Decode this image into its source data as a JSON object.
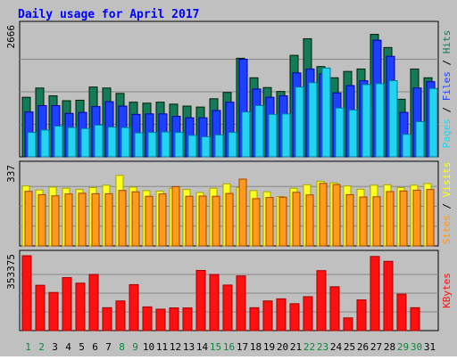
{
  "chart_data": {
    "type": "bar",
    "title": "Daily usage for April 2017",
    "days": [
      "1",
      "2",
      "3",
      "4",
      "5",
      "6",
      "7",
      "8",
      "9",
      "10",
      "11",
      "12",
      "13",
      "14",
      "15",
      "16",
      "17",
      "18",
      "19",
      "20",
      "21",
      "22",
      "23",
      "24",
      "25",
      "26",
      "27",
      "28",
      "29",
      "30",
      "31"
    ],
    "weekend_days": [
      "1",
      "2",
      "8",
      "9",
      "15",
      "16",
      "22",
      "23",
      "29",
      "30"
    ],
    "colors": {
      "background": "#c0c0c0",
      "title": "#0000ff",
      "hits": "#157a5a",
      "files": "#1f3fff",
      "pages": "#22d4f2",
      "visits": "#ffff22",
      "sites": "#ff9a1a",
      "kbytes": "#ff1010",
      "weekend_label": "#0a8a3a",
      "weekday_label": "#000000"
    },
    "panels": [
      {
        "id": "usage",
        "ymax_label": "2666",
        "ymax": 2666,
        "legend": [
          "Pages",
          "Files",
          "Hits"
        ],
        "series": [
          {
            "name": "Hits",
            "values": [
              1220,
              1410,
              1250,
              1150,
              1160,
              1430,
              1410,
              1300,
              1120,
              1100,
              1120,
              1080,
              1040,
              1020,
              1190,
              1320,
              2020,
              1620,
              1420,
              1340,
              2080,
              2420,
              1850,
              1620,
              1750,
              1800,
              2510,
              2240,
              1180,
              1800,
              1620
            ]
          },
          {
            "name": "Files",
            "values": [
              920,
              1050,
              1050,
              890,
              910,
              1030,
              1130,
              1040,
              870,
              880,
              880,
              830,
              800,
              800,
              950,
              1120,
              2000,
              1390,
              1220,
              1250,
              1720,
              1800,
              1700,
              1310,
              1460,
              1560,
              2390,
              2060,
              910,
              1410,
              1540
            ]
          },
          {
            "name": "Pages",
            "values": [
              500,
              550,
              630,
              600,
              580,
              650,
              610,
              600,
              490,
              500,
              510,
              500,
              440,
              410,
              450,
              500,
              920,
              1050,
              870,
              880,
              1430,
              1520,
              1820,
              1000,
              960,
              1480,
              1500,
              1560,
              460,
              720,
              1400
            ]
          }
        ]
      },
      {
        "id": "visits",
        "ymax_label": "337",
        "ymax": 337,
        "legend": [
          "Sites",
          "Visits"
        ],
        "series": [
          {
            "name": "Visits",
            "values": [
              255,
              238,
              250,
              245,
              240,
              248,
              258,
              300,
              250,
              235,
              233,
              245,
              240,
              227,
              245,
              264,
              248,
              235,
              230,
              210,
              245,
              260,
              275,
              268,
              255,
              241,
              258,
              260,
              248,
              258,
              265
            ]
          },
          {
            "name": "Sites",
            "values": [
              232,
              218,
              213,
              221,
              224,
              222,
              222,
              236,
              230,
              211,
              221,
              252,
              211,
              212,
              211,
              223,
              284,
              201,
              206,
              207,
              228,
              217,
              266,
              261,
              218,
              208,
              209,
              231,
              234,
              237,
              240
            ]
          }
        ]
      },
      {
        "id": "kbytes",
        "ymax_label": "353375",
        "ymax": 353375,
        "legend": [
          "KBytes"
        ],
        "series": [
          {
            "name": "KBytes",
            "values": [
              353375,
              214000,
              180000,
              250000,
              224000,
              265000,
              108000,
              140000,
              217000,
              112000,
              101000,
              107000,
              107000,
              284000,
              265000,
              215000,
              258000,
              108000,
              140000,
              150000,
              127000,
              160000,
              283000,
              207000,
              60000,
              145000,
              350000,
              327000,
              172000,
              108000,
              0
            ]
          }
        ]
      }
    ]
  }
}
